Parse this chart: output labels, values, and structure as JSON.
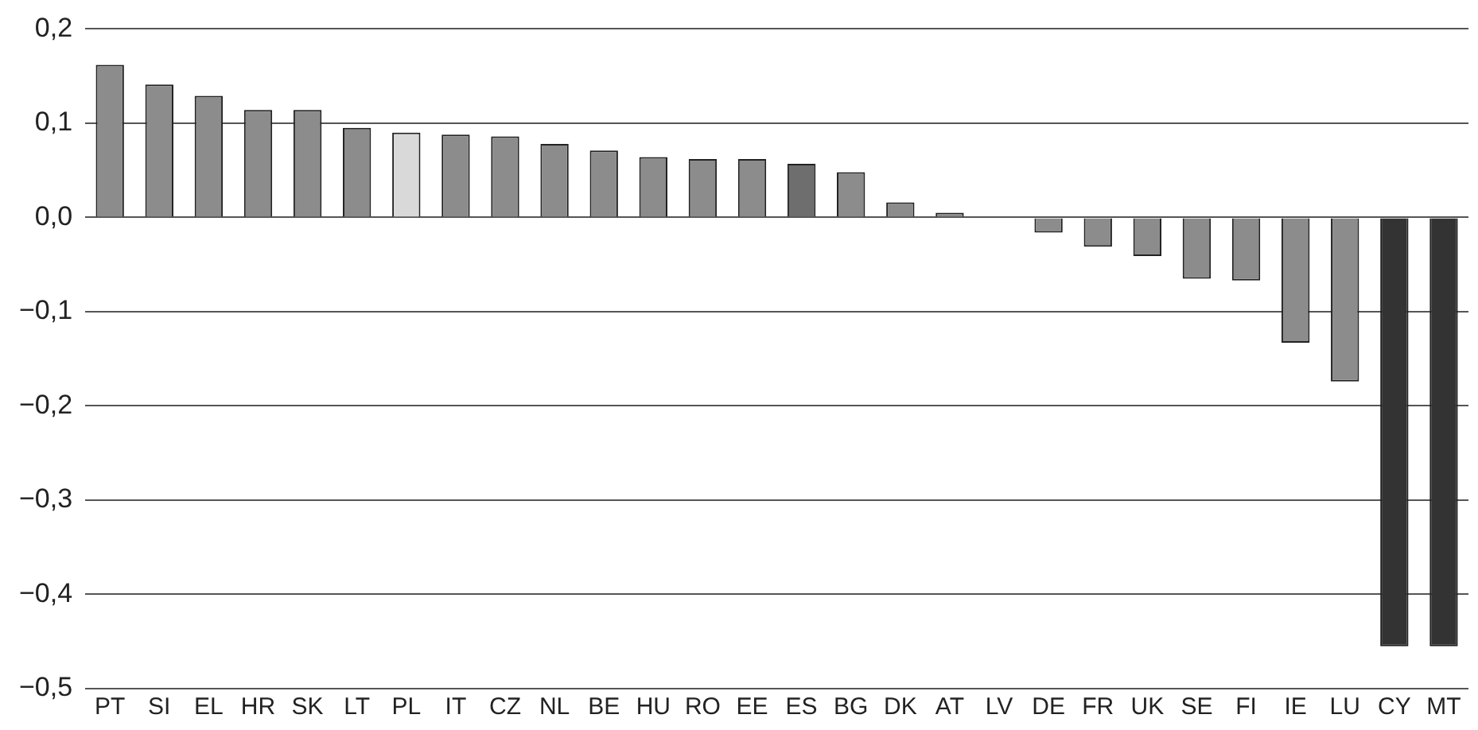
{
  "chart_data": {
    "type": "bar",
    "categories": [
      "PT",
      "SI",
      "EL",
      "HR",
      "SK",
      "LT",
      "PL",
      "IT",
      "CZ",
      "NL",
      "BE",
      "HU",
      "RO",
      "EE",
      "ES",
      "BG",
      "DK",
      "AT",
      "LV",
      "DE",
      "FR",
      "UK",
      "SE",
      "FI",
      "IE",
      "LU",
      "CY",
      "MT"
    ],
    "values": [
      0.162,
      0.141,
      0.129,
      0.114,
      0.114,
      0.095,
      0.09,
      0.088,
      0.086,
      0.078,
      0.071,
      0.064,
      0.062,
      0.062,
      0.057,
      0.048,
      0.016,
      0.005,
      -0.001,
      -0.016,
      -0.031,
      -0.041,
      -0.065,
      -0.067,
      -0.133,
      -0.174,
      -0.455,
      -0.455
    ],
    "colors": [
      "#8c8c8c",
      "#8c8c8c",
      "#8c8c8c",
      "#8c8c8c",
      "#8c8c8c",
      "#8c8c8c",
      "#d9d9d9",
      "#8c8c8c",
      "#8c8c8c",
      "#8c8c8c",
      "#8c8c8c",
      "#8c8c8c",
      "#8c8c8c",
      "#8c8c8c",
      "#6e6e6e",
      "#8c8c8c",
      "#8c8c8c",
      "#8c8c8c",
      "#8c8c8c",
      "#8c8c8c",
      "#8c8c8c",
      "#8c8c8c",
      "#8c8c8c",
      "#8c8c8c",
      "#8c8c8c",
      "#8c8c8c",
      "#333333",
      "#333333"
    ],
    "ylim": [
      -0.5,
      0.2
    ],
    "yticks": [
      {
        "value": 0.2,
        "label": "0,2"
      },
      {
        "value": 0.1,
        "label": "0,1"
      },
      {
        "value": 0,
        "label": "0,0"
      },
      {
        "value": -0.1,
        "label": "−0,1"
      },
      {
        "value": -0.2,
        "label": "−0,2"
      },
      {
        "value": -0.3,
        "label": "−0,3"
      },
      {
        "value": -0.4,
        "label": "−0,4"
      },
      {
        "value": -0.5,
        "label": "−0,5"
      }
    ],
    "grid": "y",
    "legend": false
  }
}
